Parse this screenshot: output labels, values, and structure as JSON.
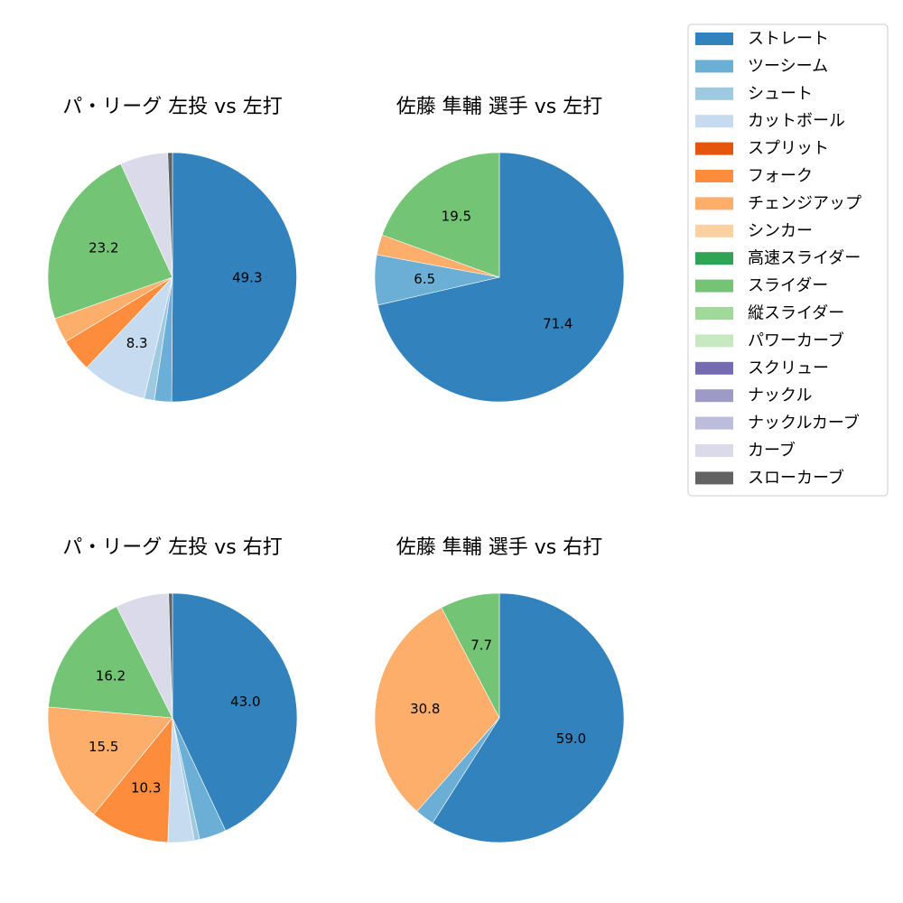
{
  "legend": {
    "items": [
      {
        "label": "ストレート",
        "color": "#3182bd"
      },
      {
        "label": "ツーシーム",
        "color": "#6baed6"
      },
      {
        "label": "シュート",
        "color": "#9ecae1"
      },
      {
        "label": "カットボール",
        "color": "#c6dbef"
      },
      {
        "label": "スプリット",
        "color": "#e6550d"
      },
      {
        "label": "フォーク",
        "color": "#fd8d3c"
      },
      {
        "label": "チェンジアップ",
        "color": "#fdae6b"
      },
      {
        "label": "シンカー",
        "color": "#fdd0a2"
      },
      {
        "label": "高速スライダー",
        "color": "#31a354"
      },
      {
        "label": "スライダー",
        "color": "#74c476"
      },
      {
        "label": "縦スライダー",
        "color": "#a1d99b"
      },
      {
        "label": "パワーカーブ",
        "color": "#c7e9c0"
      },
      {
        "label": "スクリュー",
        "color": "#756bb1"
      },
      {
        "label": "ナックル",
        "color": "#9e9ac8"
      },
      {
        "label": "ナックルカーブ",
        "color": "#bcbddc"
      },
      {
        "label": "カーブ",
        "color": "#dadaeb"
      },
      {
        "label": "スローカーブ",
        "color": "#636363"
      }
    ]
  },
  "chart_data": [
    {
      "type": "pie",
      "title": "パ・リーグ 左投 vs 左打",
      "slices": [
        {
          "category": "ストレート",
          "value": 49.3,
          "label": "49.3"
        },
        {
          "category": "ツーシーム",
          "value": 2.2,
          "label": ""
        },
        {
          "category": "シュート",
          "value": 1.3,
          "label": ""
        },
        {
          "category": "カットボール",
          "value": 8.3,
          "label": "8.3"
        },
        {
          "category": "フォーク",
          "value": 4.2,
          "label": ""
        },
        {
          "category": "チェンジアップ",
          "value": 3.2,
          "label": ""
        },
        {
          "category": "スライダー",
          "value": 23.2,
          "label": "23.2"
        },
        {
          "category": "カーブ",
          "value": 6.1,
          "label": ""
        },
        {
          "category": "スローカーブ",
          "value": 0.6,
          "label": ""
        }
      ]
    },
    {
      "type": "pie",
      "title": "佐藤 隼輔 選手 vs 左打",
      "slices": [
        {
          "category": "ストレート",
          "value": 71.4,
          "label": "71.4"
        },
        {
          "category": "ツーシーム",
          "value": 6.5,
          "label": "6.5"
        },
        {
          "category": "チェンジアップ",
          "value": 2.6,
          "label": ""
        },
        {
          "category": "スライダー",
          "value": 19.5,
          "label": "19.5"
        }
      ]
    },
    {
      "type": "pie",
      "title": "パ・リーグ 左投 vs 右打",
      "slices": [
        {
          "category": "ストレート",
          "value": 43.0,
          "label": "43.0"
        },
        {
          "category": "ツーシーム",
          "value": 3.5,
          "label": ""
        },
        {
          "category": "シュート",
          "value": 0.7,
          "label": ""
        },
        {
          "category": "カットボール",
          "value": 3.4,
          "label": ""
        },
        {
          "category": "フォーク",
          "value": 10.3,
          "label": "10.3"
        },
        {
          "category": "チェンジアップ",
          "value": 15.5,
          "label": "15.5"
        },
        {
          "category": "スライダー",
          "value": 16.2,
          "label": "16.2"
        },
        {
          "category": "カーブ",
          "value": 6.9,
          "label": ""
        },
        {
          "category": "スローカーブ",
          "value": 0.5,
          "label": ""
        }
      ]
    },
    {
      "type": "pie",
      "title": "佐藤 隼輔 選手 vs 右打",
      "slices": [
        {
          "category": "ストレート",
          "value": 59.0,
          "label": "59.0"
        },
        {
          "category": "ツーシーム",
          "value": 2.5,
          "label": ""
        },
        {
          "category": "チェンジアップ",
          "value": 30.8,
          "label": "30.8"
        },
        {
          "category": "スライダー",
          "value": 7.7,
          "label": "7.7"
        }
      ]
    }
  ]
}
